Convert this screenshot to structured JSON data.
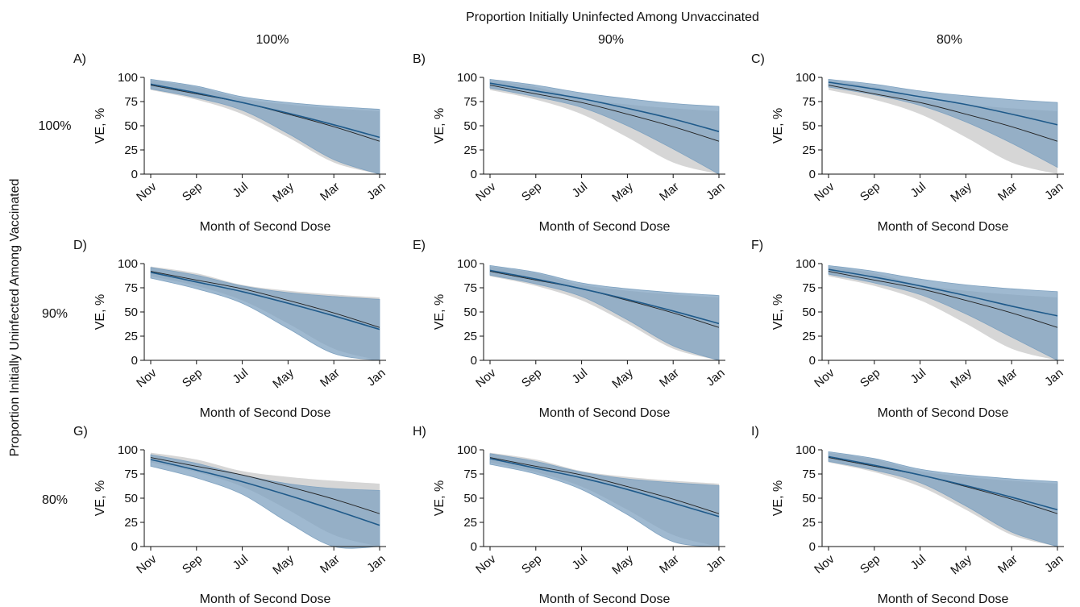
{
  "figure": {
    "top_title": "Proportion Initially Uninfected Among Unvaccinated",
    "left_title": "Proportion Initially Uninfected Among Vaccinated",
    "column_labels": [
      "100%",
      "90%",
      "80%"
    ],
    "row_labels": [
      "100%",
      "90%",
      "80%"
    ],
    "colors": {
      "blue_line": "#1f5a8a",
      "blue_band": "#7fa2c0",
      "gray_band": "#cfcfcf",
      "ref_line": "#222222"
    }
  },
  "chart_data": [
    {
      "panel_label": "A)",
      "type": "line",
      "xlabel": "Month of Second Dose",
      "ylabel": "VE, %",
      "x_ticks": [
        "Nov",
        "Sep",
        "Jul",
        "May",
        "Mar",
        "Jan"
      ],
      "y_ticks": [
        0,
        25,
        50,
        75,
        100
      ],
      "ylim": [
        0,
        100
      ],
      "series": [
        {
          "role": "reference",
          "values": [
            92,
            83,
            74,
            62,
            49,
            34
          ],
          "lower": [
            87,
            77,
            62,
            38,
            12,
            0
          ],
          "upper": [
            97,
            90,
            78,
            72,
            68,
            65
          ]
        },
        {
          "role": "estimate",
          "values": [
            93,
            84,
            74,
            63,
            51,
            38
          ],
          "lower": [
            88,
            79,
            66,
            42,
            15,
            0
          ],
          "upper": [
            98,
            91,
            80,
            74,
            70,
            67
          ]
        }
      ]
    },
    {
      "panel_label": "B)",
      "type": "line",
      "xlabel": "Month of Second Dose",
      "ylabel": "VE, %",
      "x_ticks": [
        "Nov",
        "Sep",
        "Jul",
        "May",
        "Mar",
        "Jan"
      ],
      "y_ticks": [
        0,
        25,
        50,
        75,
        100
      ],
      "ylim": [
        0,
        100
      ],
      "series": [
        {
          "role": "reference",
          "values": [
            92,
            83,
            74,
            62,
            49,
            34
          ],
          "lower": [
            87,
            77,
            62,
            38,
            12,
            0
          ],
          "upper": [
            97,
            90,
            78,
            72,
            68,
            65
          ]
        },
        {
          "role": "estimate",
          "values": [
            94,
            86,
            78,
            68,
            57,
            44
          ],
          "lower": [
            89,
            80,
            69,
            50,
            26,
            0
          ],
          "upper": [
            98,
            92,
            84,
            78,
            73,
            70
          ]
        }
      ]
    },
    {
      "panel_label": "C)",
      "type": "line",
      "xlabel": "Month of Second Dose",
      "ylabel": "VE, %",
      "x_ticks": [
        "Nov",
        "Sep",
        "Jul",
        "May",
        "Mar",
        "Jan"
      ],
      "y_ticks": [
        0,
        25,
        50,
        75,
        100
      ],
      "ylim": [
        0,
        100
      ],
      "series": [
        {
          "role": "reference",
          "values": [
            92,
            83,
            74,
            62,
            49,
            34
          ],
          "lower": [
            87,
            77,
            62,
            38,
            12,
            0
          ],
          "upper": [
            97,
            90,
            78,
            72,
            68,
            65
          ]
        },
        {
          "role": "estimate",
          "values": [
            95,
            88,
            80,
            72,
            62,
            51
          ],
          "lower": [
            90,
            82,
            71,
            54,
            32,
            7
          ],
          "upper": [
            98,
            93,
            86,
            81,
            77,
            74
          ]
        }
      ]
    },
    {
      "panel_label": "D)",
      "type": "line",
      "xlabel": "Month of Second Dose",
      "ylabel": "VE, %",
      "x_ticks": [
        "Nov",
        "Sep",
        "Jul",
        "May",
        "Mar",
        "Jan"
      ],
      "y_ticks": [
        0,
        25,
        50,
        75,
        100
      ],
      "ylim": [
        0,
        100
      ],
      "series": [
        {
          "role": "reference",
          "values": [
            92,
            83,
            74,
            62,
            49,
            34
          ],
          "lower": [
            87,
            77,
            62,
            38,
            12,
            0
          ],
          "upper": [
            97,
            90,
            78,
            72,
            68,
            65
          ]
        },
        {
          "role": "estimate",
          "values": [
            91,
            81,
            71,
            59,
            46,
            32
          ],
          "lower": [
            85,
            74,
            59,
            33,
            7,
            0
          ],
          "upper": [
            96,
            88,
            77,
            70,
            66,
            63
          ]
        }
      ]
    },
    {
      "panel_label": "E)",
      "type": "line",
      "xlabel": "Month of Second Dose",
      "ylabel": "VE, %",
      "x_ticks": [
        "Nov",
        "Sep",
        "Jul",
        "May",
        "Mar",
        "Jan"
      ],
      "y_ticks": [
        0,
        25,
        50,
        75,
        100
      ],
      "ylim": [
        0,
        100
      ],
      "series": [
        {
          "role": "reference",
          "values": [
            92,
            83,
            74,
            62,
            49,
            34
          ],
          "lower": [
            87,
            77,
            62,
            38,
            12,
            0
          ],
          "upper": [
            97,
            90,
            78,
            72,
            68,
            65
          ]
        },
        {
          "role": "estimate",
          "values": [
            93,
            84,
            74,
            63,
            51,
            38
          ],
          "lower": [
            88,
            79,
            66,
            42,
            15,
            0
          ],
          "upper": [
            98,
            91,
            80,
            74,
            70,
            67
          ]
        }
      ]
    },
    {
      "panel_label": "F)",
      "type": "line",
      "xlabel": "Month of Second Dose",
      "ylabel": "VE, %",
      "x_ticks": [
        "Nov",
        "Sep",
        "Jul",
        "May",
        "Mar",
        "Jan"
      ],
      "y_ticks": [
        0,
        25,
        50,
        75,
        100
      ],
      "ylim": [
        0,
        100
      ],
      "series": [
        {
          "role": "reference",
          "values": [
            92,
            83,
            74,
            62,
            49,
            34
          ],
          "lower": [
            87,
            77,
            62,
            38,
            12,
            0
          ],
          "upper": [
            97,
            90,
            78,
            72,
            68,
            65
          ]
        },
        {
          "role": "estimate",
          "values": [
            94,
            86,
            77,
            67,
            56,
            46
          ],
          "lower": [
            89,
            80,
            68,
            48,
            24,
            0
          ],
          "upper": [
            98,
            92,
            84,
            78,
            74,
            71
          ]
        }
      ]
    },
    {
      "panel_label": "G)",
      "type": "line",
      "xlabel": "Month of Second Dose",
      "ylabel": "VE, %",
      "x_ticks": [
        "Nov",
        "Sep",
        "Jul",
        "May",
        "Mar",
        "Jan"
      ],
      "y_ticks": [
        0,
        25,
        50,
        75,
        100
      ],
      "ylim": [
        0,
        100
      ],
      "series": [
        {
          "role": "reference",
          "values": [
            92,
            83,
            74,
            62,
            49,
            34
          ],
          "lower": [
            87,
            77,
            62,
            38,
            12,
            0
          ],
          "upper": [
            97,
            90,
            78,
            72,
            68,
            65
          ]
        },
        {
          "role": "estimate",
          "values": [
            90,
            79,
            67,
            53,
            38,
            22
          ],
          "lower": [
            83,
            71,
            54,
            25,
            0,
            0
          ],
          "upper": [
            95,
            86,
            74,
            65,
            60,
            58
          ]
        }
      ]
    },
    {
      "panel_label": "H)",
      "type": "line",
      "xlabel": "Month of Second Dose",
      "ylabel": "VE, %",
      "x_ticks": [
        "Nov",
        "Sep",
        "Jul",
        "May",
        "Mar",
        "Jan"
      ],
      "y_ticks": [
        0,
        25,
        50,
        75,
        100
      ],
      "ylim": [
        0,
        100
      ],
      "series": [
        {
          "role": "reference",
          "values": [
            92,
            83,
            74,
            62,
            49,
            34
          ],
          "lower": [
            87,
            77,
            62,
            38,
            12,
            0
          ],
          "upper": [
            97,
            90,
            78,
            72,
            68,
            65
          ]
        },
        {
          "role": "estimate",
          "values": [
            91,
            81,
            71,
            59,
            45,
            31
          ],
          "lower": [
            85,
            75,
            59,
            33,
            5,
            0
          ],
          "upper": [
            96,
            88,
            77,
            70,
            66,
            63
          ]
        }
      ]
    },
    {
      "panel_label": "I)",
      "type": "line",
      "xlabel": "Month of Second Dose",
      "ylabel": "VE, %",
      "x_ticks": [
        "Nov",
        "Sep",
        "Jul",
        "May",
        "Mar",
        "Jan"
      ],
      "y_ticks": [
        0,
        25,
        50,
        75,
        100
      ],
      "ylim": [
        0,
        100
      ],
      "series": [
        {
          "role": "reference",
          "values": [
            92,
            83,
            74,
            62,
            49,
            34
          ],
          "lower": [
            87,
            77,
            62,
            38,
            12,
            0
          ],
          "upper": [
            97,
            90,
            78,
            72,
            68,
            65
          ]
        },
        {
          "role": "estimate",
          "values": [
            93,
            84,
            74,
            63,
            51,
            38
          ],
          "lower": [
            88,
            79,
            66,
            42,
            15,
            0
          ],
          "upper": [
            98,
            91,
            80,
            74,
            70,
            67
          ]
        }
      ]
    }
  ]
}
